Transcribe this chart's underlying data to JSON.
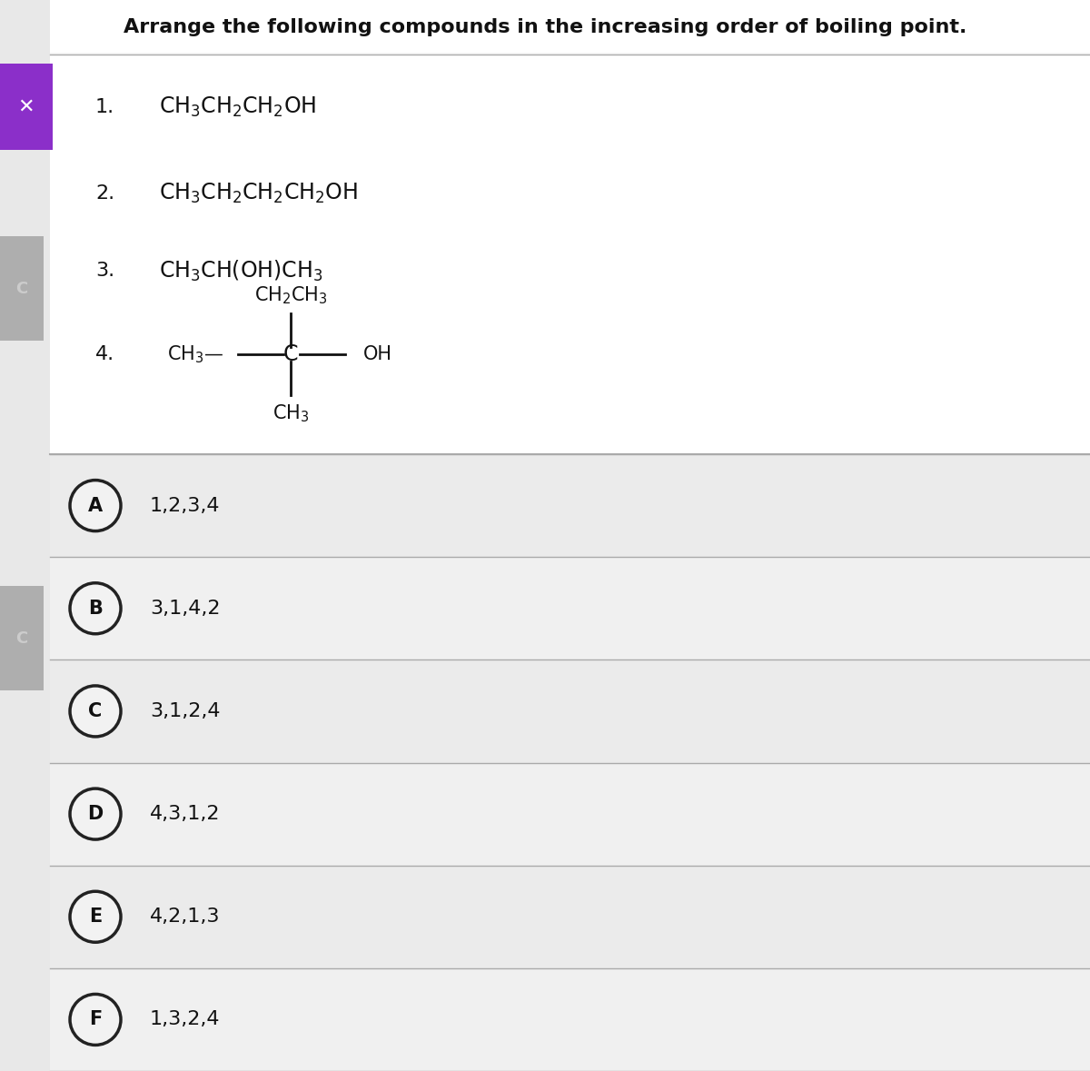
{
  "title": "Arrange the following compounds in the increasing order of boiling point.",
  "title_fontsize": 16,
  "title_fontweight": "bold",
  "bg_color": "#e8e8e8",
  "panel_color": "#f2f2f2",
  "options": [
    {
      "letter": "A",
      "text": "1,2,3,4"
    },
    {
      "letter": "B",
      "text": "3,1,4,2"
    },
    {
      "letter": "C",
      "text": "3,1,2,4"
    },
    {
      "letter": "D",
      "text": "4,3,1,2"
    },
    {
      "letter": "E",
      "text": "4,2,1,3"
    },
    {
      "letter": "F",
      "text": "1,3,2,4"
    }
  ],
  "divider_color": "#aaaaaa",
  "text_color": "#111111",
  "circle_edge_color": "#222222",
  "circle_face_color": "#f2f2f2",
  "purple_color": "#8B2FC9",
  "gray_color": "#888888",
  "formula_fontsize": 17,
  "num_fontsize": 16,
  "option_fontsize": 16,
  "struct_fontsize": 15
}
